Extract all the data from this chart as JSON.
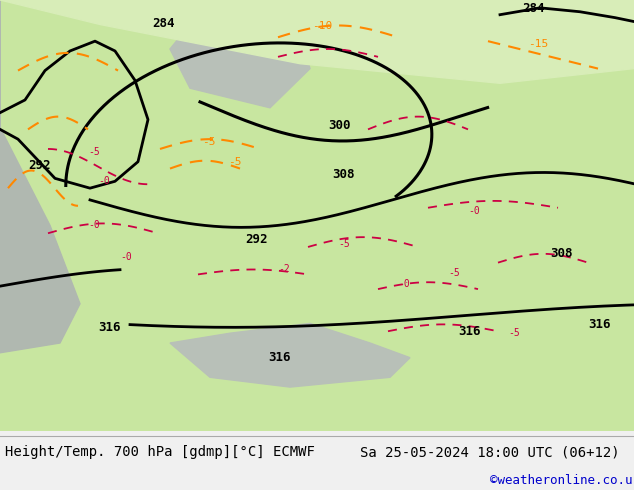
{
  "title_left": "Height/Temp. 700 hPa [gdmp][°C] ECMWF",
  "title_right": "Sa 25-05-2024 18:00 UTC (06+12)",
  "copyright": "©weatheronline.co.uk",
  "bg_color": "#f0f0f0",
  "footer_text_color": "#000000",
  "copyright_color": "#0000cc",
  "land_color_green": "#c8e6a0",
  "land_color_light": "#d8edb8",
  "ocean_color": "#c0c8c0",
  "height_contour_color": "#000000",
  "temp_contour_color_orange": "#ff8800",
  "temp_contour_color_red": "#cc0044"
}
